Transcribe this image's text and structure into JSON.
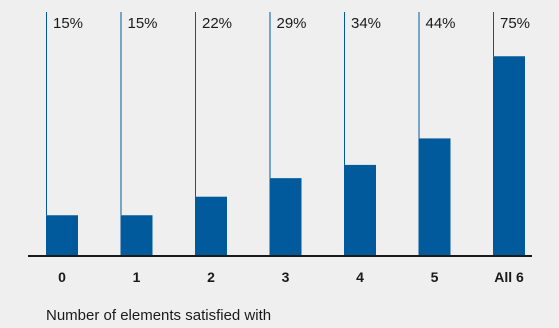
{
  "chart_data": {
    "type": "bar",
    "categories": [
      "0",
      "1",
      "2",
      "3",
      "4",
      "5",
      "All 6"
    ],
    "values": [
      15,
      15,
      22,
      29,
      34,
      44,
      75
    ],
    "value_labels": [
      "15%",
      "15%",
      "22%",
      "29%",
      "34%",
      "44%",
      "75%"
    ],
    "xlabel": "Number of elements satisfied with",
    "ylabel": "",
    "ylim": [
      0,
      100
    ],
    "grid": false,
    "bar_color": "#005a9c",
    "axis_color": "#1a1a1a"
  }
}
